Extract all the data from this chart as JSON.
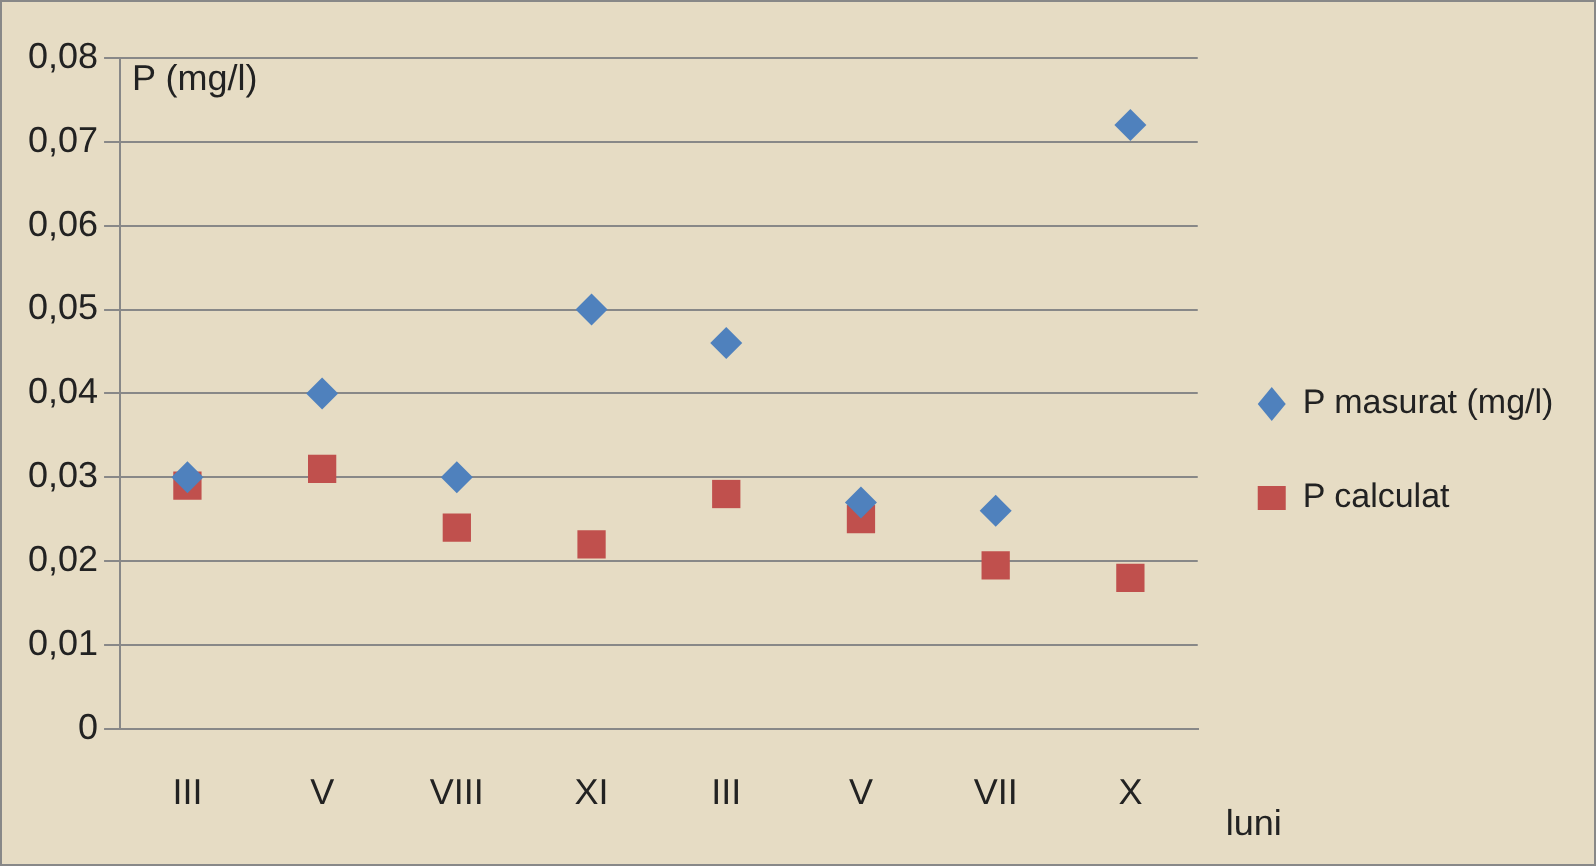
{
  "chart_data": {
    "type": "scatter",
    "xlabel": "luni",
    "ylabel": "P (mg/l)",
    "categories": [
      "III",
      "V",
      "VIII",
      "XI",
      "III",
      "V",
      "VII",
      "X"
    ],
    "series": [
      {
        "name": "P masurat (mg/l)",
        "color": "#4f81bd",
        "marker": "diamond",
        "values": [
          0.03,
          0.04,
          0.03,
          0.05,
          0.046,
          0.027,
          0.026,
          0.072
        ]
      },
      {
        "name": "P calculat",
        "color": "#c0504d",
        "marker": "square",
        "values": [
          0.029,
          0.031,
          0.024,
          0.022,
          0.028,
          0.025,
          0.0195,
          0.018
        ]
      }
    ],
    "ylim": [
      0,
      0.08
    ],
    "yticks": [
      0,
      {
        "value": 0.01,
        "label": "0,01"
      },
      {
        "value": 0.02,
        "label": "0,02"
      },
      {
        "value": 0.03,
        "label": "0,03"
      },
      {
        "value": 0.04,
        "label": "0,04"
      },
      {
        "value": 0.05,
        "label": "0,05"
      },
      {
        "value": 0.06,
        "label": "0,06"
      },
      {
        "value": 0.07,
        "label": "0,07"
      },
      {
        "value": 0.08,
        "label": "0,08"
      }
    ],
    "grid": "y",
    "legend": "right"
  }
}
